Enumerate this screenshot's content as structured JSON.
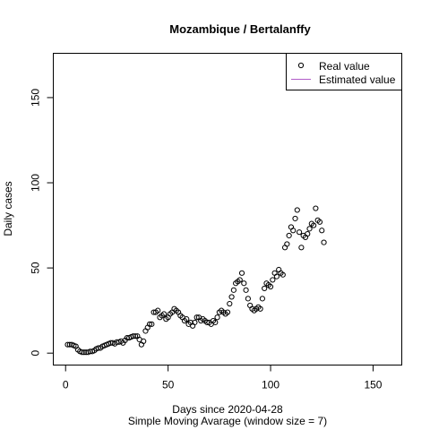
{
  "chart_data": {
    "type": "scatter",
    "title": "Mozambique / Bertalanffy",
    "xlabel": "Days since 2020-04-28",
    "xlabel2": "Simple Moving Avarage (window size = 7)",
    "ylabel": "Daily cases",
    "xlim": [
      -6,
      164
    ],
    "ylim": [
      -7,
      176
    ],
    "xticks": [
      0,
      50,
      100,
      150
    ],
    "yticks": [
      0,
      50,
      100,
      150
    ],
    "grid": false,
    "legend_position": "top-right",
    "legend": [
      {
        "label": "Real value",
        "marker": "open-circle",
        "color": "#000000"
      },
      {
        "label": "Estimated value",
        "marker": "line",
        "color": "#b05cc8"
      }
    ],
    "series": [
      {
        "name": "Real value",
        "color": "#000000",
        "points": [
          [
            1,
            5
          ],
          [
            2,
            5
          ],
          [
            3,
            5
          ],
          [
            4,
            4.5
          ],
          [
            5,
            4
          ],
          [
            6,
            2
          ],
          [
            7,
            1
          ],
          [
            8,
            0.5
          ],
          [
            9,
            0.5
          ],
          [
            10,
            0.5
          ],
          [
            11,
            0.5
          ],
          [
            12,
            1
          ],
          [
            13,
            1
          ],
          [
            14,
            1.5
          ],
          [
            15,
            2.5
          ],
          [
            16,
            3
          ],
          [
            17,
            3
          ],
          [
            18,
            4
          ],
          [
            19,
            4.5
          ],
          [
            20,
            5
          ],
          [
            21,
            5.5
          ],
          [
            22,
            6
          ],
          [
            23,
            6
          ],
          [
            24,
            5.5
          ],
          [
            25,
            6.5
          ],
          [
            26,
            6.5
          ],
          [
            27,
            7
          ],
          [
            28,
            6
          ],
          [
            29,
            7.5
          ],
          [
            30,
            9
          ],
          [
            31,
            9
          ],
          [
            32,
            9.5
          ],
          [
            33,
            10
          ],
          [
            34,
            10
          ],
          [
            35,
            10
          ],
          [
            36,
            8
          ],
          [
            37,
            5
          ],
          [
            38,
            7
          ],
          [
            39,
            13
          ],
          [
            40,
            15
          ],
          [
            41,
            17
          ],
          [
            42,
            17
          ],
          [
            43,
            24
          ],
          [
            44,
            24
          ],
          [
            45,
            25
          ],
          [
            46,
            21
          ],
          [
            47,
            22
          ],
          [
            48,
            23
          ],
          [
            49,
            20
          ],
          [
            50,
            21
          ],
          [
            51,
            23
          ],
          [
            52,
            24
          ],
          [
            53,
            26
          ],
          [
            54,
            25
          ],
          [
            55,
            24
          ],
          [
            56,
            22
          ],
          [
            57,
            21
          ],
          [
            58,
            19
          ],
          [
            59,
            20
          ],
          [
            60,
            17
          ],
          [
            61,
            18
          ],
          [
            62,
            16
          ],
          [
            63,
            18
          ],
          [
            64,
            21
          ],
          [
            65,
            21
          ],
          [
            66,
            19
          ],
          [
            67,
            20
          ],
          [
            68,
            19
          ],
          [
            69,
            18
          ],
          [
            70,
            18
          ],
          [
            71,
            17
          ],
          [
            72,
            19
          ],
          [
            73,
            18
          ],
          [
            74,
            21
          ],
          [
            75,
            24
          ],
          [
            76,
            25
          ],
          [
            77,
            24
          ],
          [
            78,
            23
          ],
          [
            79,
            24
          ],
          [
            80,
            29
          ],
          [
            81,
            33
          ],
          [
            82,
            37
          ],
          [
            83,
            41
          ],
          [
            84,
            42
          ],
          [
            85,
            43
          ],
          [
            86,
            47
          ],
          [
            87,
            41
          ],
          [
            88,
            37
          ],
          [
            89,
            32
          ],
          [
            90,
            28
          ],
          [
            91,
            26
          ],
          [
            92,
            25
          ],
          [
            93,
            26
          ],
          [
            94,
            27
          ],
          [
            95,
            26
          ],
          [
            96,
            32
          ],
          [
            97,
            38
          ],
          [
            98,
            41
          ],
          [
            99,
            40
          ],
          [
            100,
            39
          ],
          [
            101,
            43
          ],
          [
            102,
            47
          ],
          [
            103,
            45
          ],
          [
            104,
            49
          ],
          [
            105,
            47
          ],
          [
            106,
            46
          ],
          [
            107,
            62
          ],
          [
            108,
            64
          ],
          [
            109,
            69
          ],
          [
            110,
            74
          ],
          [
            111,
            72
          ],
          [
            112,
            79
          ],
          [
            113,
            84
          ],
          [
            114,
            71
          ],
          [
            115,
            62
          ],
          [
            116,
            69
          ],
          [
            117,
            68
          ],
          [
            118,
            70
          ],
          [
            119,
            73
          ],
          [
            120,
            76
          ],
          [
            121,
            75
          ],
          [
            122,
            85
          ],
          [
            123,
            78
          ],
          [
            124,
            77
          ],
          [
            125,
            72
          ],
          [
            126,
            65
          ]
        ]
      },
      {
        "name": "Estimated value",
        "color": "#b05cc8",
        "points": []
      }
    ]
  }
}
